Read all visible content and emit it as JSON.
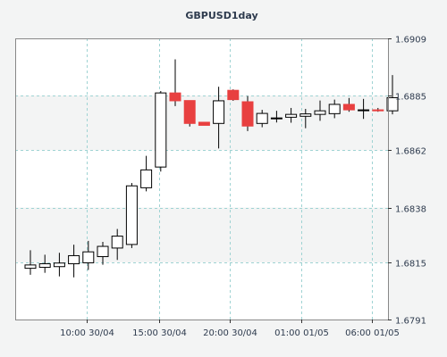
{
  "chart_data": {
    "type": "candlestick",
    "title": "GBPUSD1day",
    "x_tick_labels": [
      "10:00 30/04",
      "15:00 30/04",
      "20:00 30/04",
      "01:00 01/05",
      "06:00 01/05"
    ],
    "y_tick_labels": [
      "1.6909",
      "1.6885",
      "1.6862",
      "1.6838",
      "1.6815",
      "1.6791"
    ],
    "ylim": [
      1.6791,
      1.6909
    ],
    "grid": true,
    "colors": {
      "up_body": "#ffffff",
      "down_body": "#e84040",
      "wick": "#000000",
      "grid": "#9fd3d3",
      "plot_bg": "#ffffff",
      "band_bg": "#f3f4f4"
    },
    "candles": [
      {
        "open": 1.68125,
        "high": 1.68201,
        "low": 1.68098,
        "close": 1.68139
      },
      {
        "open": 1.68129,
        "high": 1.68182,
        "low": 1.68106,
        "close": 1.68144
      },
      {
        "open": 1.68132,
        "high": 1.6819,
        "low": 1.68091,
        "close": 1.68147
      },
      {
        "open": 1.68144,
        "high": 1.68224,
        "low": 1.68087,
        "close": 1.68178
      },
      {
        "open": 1.68148,
        "high": 1.6824,
        "low": 1.68118,
        "close": 1.68194
      },
      {
        "open": 1.68174,
        "high": 1.68236,
        "low": 1.6814,
        "close": 1.68217
      },
      {
        "open": 1.6821,
        "high": 1.6829,
        "low": 1.6816,
        "close": 1.6826
      },
      {
        "open": 1.68225,
        "high": 1.68483,
        "low": 1.6821,
        "close": 1.68471
      },
      {
        "open": 1.68463,
        "high": 1.68597,
        "low": 1.68448,
        "close": 1.68538
      },
      {
        "open": 1.6855,
        "high": 1.68869,
        "low": 1.68531,
        "close": 1.68861
      },
      {
        "open": 1.68861,
        "high": 1.69002,
        "low": 1.68806,
        "close": 1.68828
      },
      {
        "open": 1.68829,
        "high": 1.68829,
        "low": 1.6872,
        "close": 1.68733
      },
      {
        "open": 1.68738,
        "high": 1.68738,
        "low": 1.68725,
        "close": 1.68725
      },
      {
        "open": 1.68733,
        "high": 1.68887,
        "low": 1.68628,
        "close": 1.68828
      },
      {
        "open": 1.68872,
        "high": 1.68876,
        "low": 1.68828,
        "close": 1.68833
      },
      {
        "open": 1.68824,
        "high": 1.68848,
        "low": 1.68701,
        "close": 1.68722
      },
      {
        "open": 1.68733,
        "high": 1.6879,
        "low": 1.68717,
        "close": 1.68775
      },
      {
        "open": 1.68756,
        "high": 1.68786,
        "low": 1.68737,
        "close": 1.68756
      },
      {
        "open": 1.68759,
        "high": 1.68798,
        "low": 1.68736,
        "close": 1.68771
      },
      {
        "open": 1.68763,
        "high": 1.68794,
        "low": 1.68713,
        "close": 1.68773
      },
      {
        "open": 1.68771,
        "high": 1.68829,
        "low": 1.68744,
        "close": 1.68786
      },
      {
        "open": 1.68774,
        "high": 1.68833,
        "low": 1.68755,
        "close": 1.68813
      },
      {
        "open": 1.68813,
        "high": 1.6884,
        "low": 1.68782,
        "close": 1.6879
      },
      {
        "open": 1.68788,
        "high": 1.68836,
        "low": 1.68752,
        "close": 1.6879
      },
      {
        "open": 1.6879,
        "high": 1.68798,
        "low": 1.68782,
        "close": 1.68786
      },
      {
        "open": 1.68786,
        "high": 1.68936,
        "low": 1.68771,
        "close": 1.68841
      }
    ]
  }
}
